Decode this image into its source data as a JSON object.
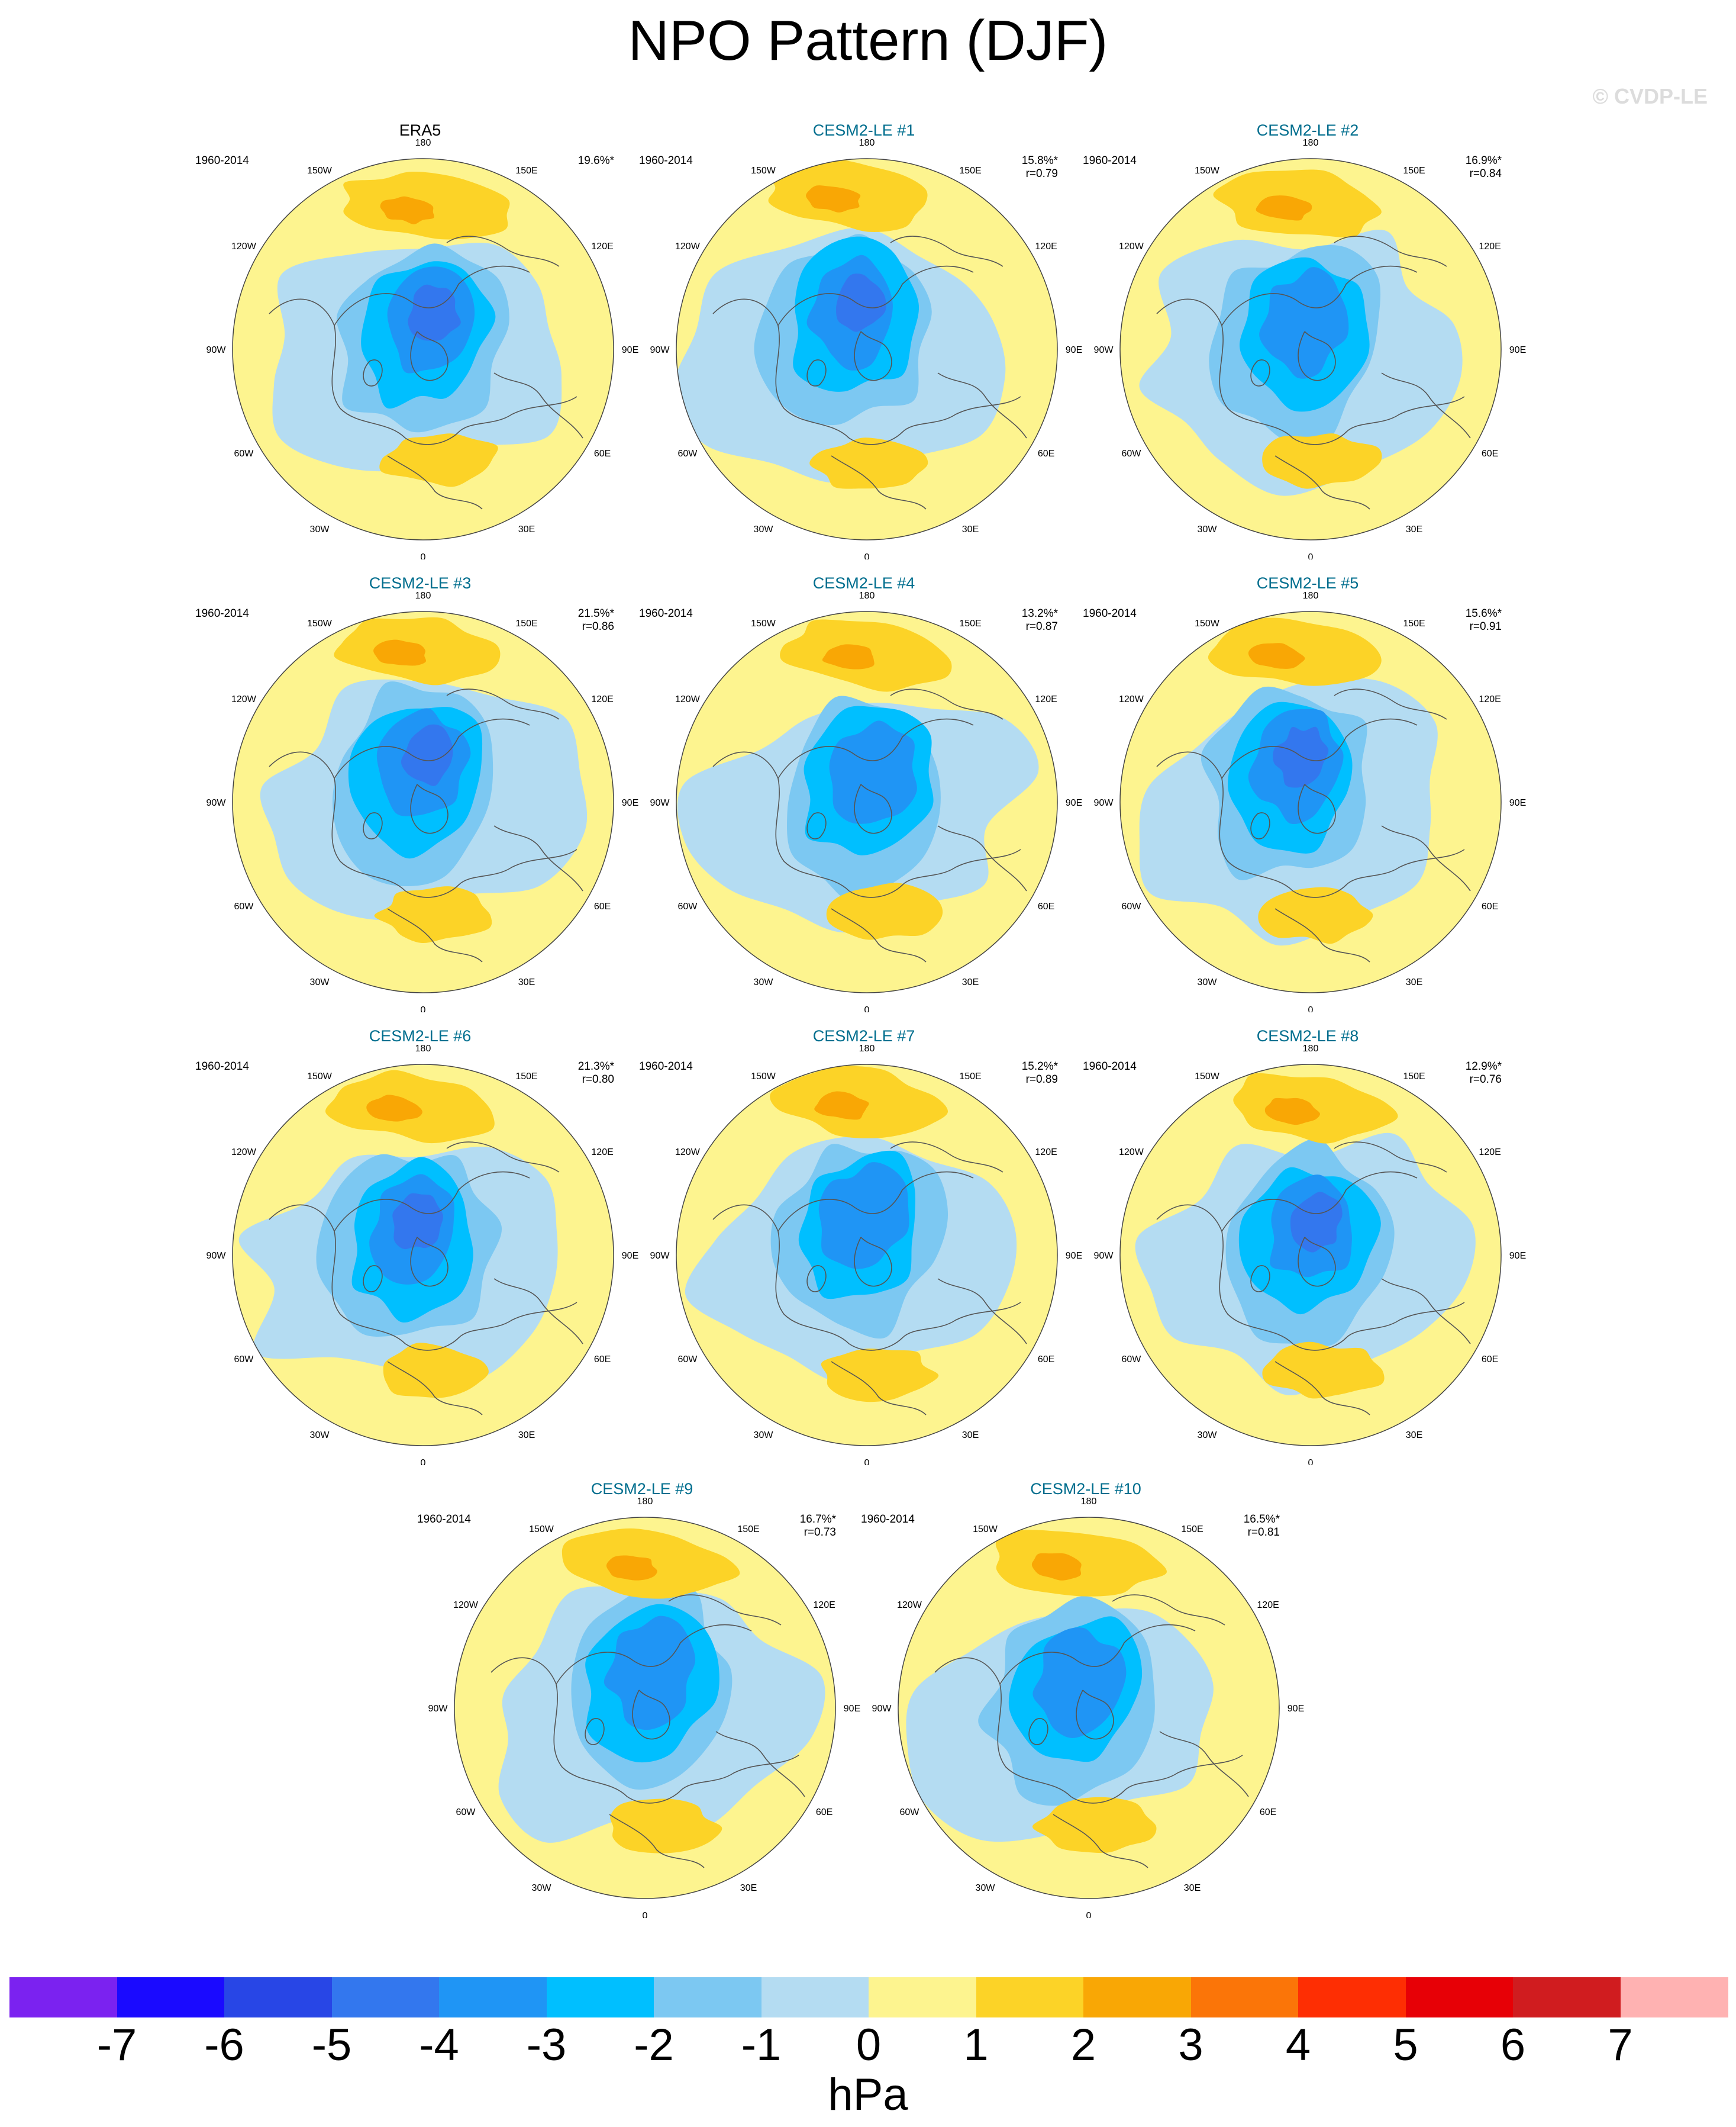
{
  "title": "NPO Pattern (DJF)",
  "watermark": "© CVDP-LE",
  "map_style": {
    "land_outline": "#555555",
    "globe_background": "#fdf48f",
    "globe_border": "#444444"
  },
  "longitude_labels": [
    "180",
    "150E",
    "120E",
    "90E",
    "60E",
    "30E",
    "0",
    "30W",
    "60W",
    "90W",
    "120W",
    "150W"
  ],
  "panels": [
    {
      "title": "ERA5",
      "kind": "obs",
      "period": "1960-2014",
      "pct": "19.6%*",
      "r": ""
    },
    {
      "title": "CESM2-LE #1",
      "kind": "model",
      "period": "1960-2014",
      "pct": "15.8%*",
      "r": "r=0.79"
    },
    {
      "title": "CESM2-LE #2",
      "kind": "model",
      "period": "1960-2014",
      "pct": "16.9%*",
      "r": "r=0.84"
    },
    {
      "title": "CESM2-LE #3",
      "kind": "model",
      "period": "1960-2014",
      "pct": "21.5%*",
      "r": "r=0.86"
    },
    {
      "title": "CESM2-LE #4",
      "kind": "model",
      "period": "1960-2014",
      "pct": "13.2%*",
      "r": "r=0.87"
    },
    {
      "title": "CESM2-LE #5",
      "kind": "model",
      "period": "1960-2014",
      "pct": "15.6%*",
      "r": "r=0.91"
    },
    {
      "title": "CESM2-LE #6",
      "kind": "model",
      "period": "1960-2014",
      "pct": "21.3%*",
      "r": "r=0.80"
    },
    {
      "title": "CESM2-LE #7",
      "kind": "model",
      "period": "1960-2014",
      "pct": "15.2%*",
      "r": "r=0.89"
    },
    {
      "title": "CESM2-LE #8",
      "kind": "model",
      "period": "1960-2014",
      "pct": "12.9%*",
      "r": "r=0.76"
    },
    {
      "title": "CESM2-LE #9",
      "kind": "model",
      "period": "1960-2014",
      "pct": "16.7%*",
      "r": "r=0.73"
    },
    {
      "title": "CESM2-LE #10",
      "kind": "model",
      "period": "1960-2014",
      "pct": "16.5%*",
      "r": "r=0.81"
    }
  ],
  "colorbar": {
    "units": "hPa",
    "labels": [
      "-7",
      "-6",
      "-5",
      "-4",
      "-3",
      "-2",
      "-1",
      "0",
      "1",
      "2",
      "3",
      "4",
      "5",
      "6",
      "7"
    ],
    "colors": [
      "#7b22f0",
      "#1a0aff",
      "#2846e6",
      "#3377ee",
      "#1f95f5",
      "#00bfff",
      "#7cc8f2",
      "#b4dcf2",
      "#fdf48f",
      "#fcd327",
      "#f9a705",
      "#fb7508",
      "#fe2e03",
      "#e70006",
      "#d01c1f",
      "#ffb2b2"
    ]
  }
}
